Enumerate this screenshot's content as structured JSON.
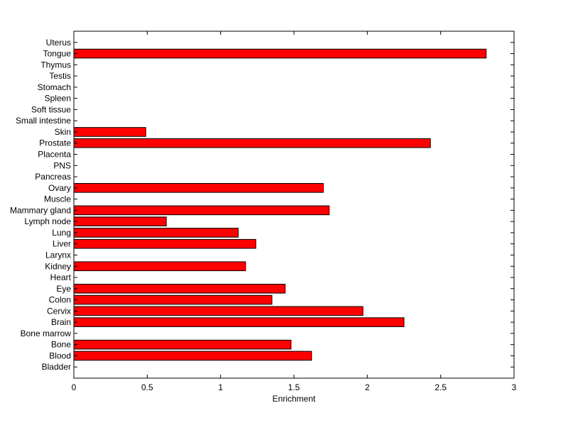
{
  "chart_data": {
    "type": "bar",
    "orientation": "horizontal",
    "title": "",
    "xlabel": "Enrichment",
    "ylabel": "",
    "xlim": [
      0,
      3
    ],
    "xticks": [
      "0",
      "0.5",
      "1",
      "1.5",
      "2",
      "2.5",
      "3"
    ],
    "grid": false,
    "bar_color": "#ff0000",
    "categories": [
      "Bladder",
      "Blood",
      "Bone",
      "Bone marrow",
      "Brain",
      "Cervix",
      "Colon",
      "Eye",
      "Heart",
      "Kidney",
      "Larynx",
      "Liver",
      "Lung",
      "Lymph node",
      "Mammary gland",
      "Muscle",
      "Ovary",
      "Pancreas",
      "PNS",
      "Placenta",
      "Prostate",
      "Skin",
      "Small intestine",
      "Soft tissue",
      "Spleen",
      "Stomach",
      "Testis",
      "Thymus",
      "Tongue",
      "Uterus"
    ],
    "values": [
      0,
      1.62,
      1.48,
      0,
      2.25,
      1.97,
      1.35,
      1.44,
      0,
      1.17,
      0,
      1.24,
      1.12,
      0.63,
      1.74,
      0,
      1.7,
      0,
      0,
      0,
      2.43,
      0.49,
      0,
      0,
      0,
      0,
      0,
      0,
      2.81,
      0
    ]
  }
}
